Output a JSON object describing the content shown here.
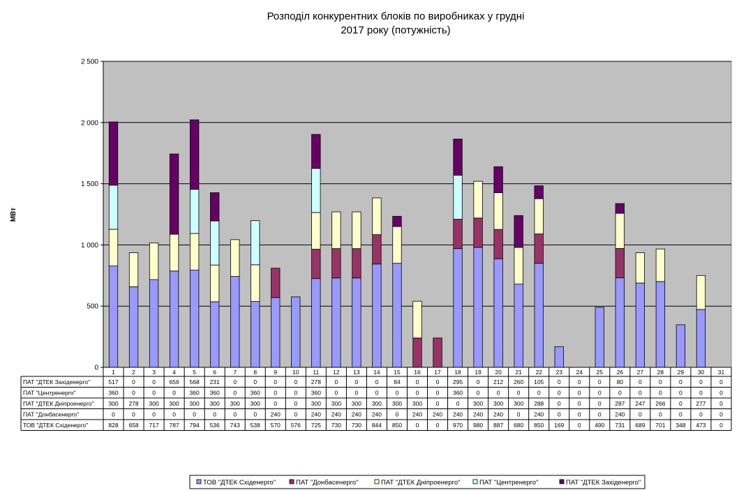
{
  "chart_data": {
    "type": "bar",
    "stacked": true,
    "title_line1": "Розподіл конкурентних  блоків по виробниках  у грудні",
    "title_line2": "2017 року  (потужність)",
    "ylabel": "МВт",
    "ylim": [
      0,
      2500
    ],
    "yticks": [
      "0",
      "500",
      "1 000",
      "1 500",
      "2 000",
      "2 500"
    ],
    "ytick_values": [
      0,
      500,
      1000,
      1500,
      2000,
      2500
    ],
    "grid": true,
    "legend_position": "bottom",
    "categories": [
      "1",
      "2",
      "3",
      "4",
      "5",
      "6",
      "7",
      "8",
      "9",
      "10",
      "11",
      "12",
      "13",
      "14",
      "15",
      "16",
      "17",
      "18",
      "19",
      "20",
      "21",
      "22",
      "23",
      "24",
      "25",
      "26",
      "27",
      "28",
      "29",
      "30",
      "31"
    ],
    "series": [
      {
        "name": "ТОВ \"ДТЕК Східенерго\"",
        "color": "#9999ff",
        "values": [
          828,
          658,
          717,
          787,
          794,
          536,
          743,
          538,
          570,
          576,
          725,
          730,
          730,
          844,
          850,
          0,
          0,
          970,
          980,
          887,
          680,
          850,
          169,
          0,
          490,
          731,
          689,
          701,
          348,
          473,
          0
        ]
      },
      {
        "name": "ПАТ \"Донбасенерго\"",
        "color": "#993366",
        "values": [
          0,
          0,
          0,
          0,
          0,
          0,
          0,
          0,
          240,
          0,
          240,
          240,
          240,
          240,
          0,
          240,
          240,
          240,
          240,
          240,
          0,
          240,
          0,
          0,
          0,
          240,
          0,
          0,
          0,
          0,
          0
        ]
      },
      {
        "name": "ПАТ \"ДТЕК Дніпроенерго\"",
        "color": "#ffffcc",
        "values": [
          300,
          278,
          300,
          300,
          300,
          300,
          300,
          300,
          0,
          0,
          300,
          300,
          300,
          300,
          300,
          300,
          0,
          0,
          300,
          300,
          300,
          288,
          0,
          0,
          0,
          287,
          247,
          266,
          0,
          277,
          0
        ]
      },
      {
        "name": "ПАТ \"Центренерго\"",
        "color": "#ccffff",
        "values": [
          360,
          0,
          0,
          0,
          360,
          360,
          0,
          360,
          0,
          0,
          360,
          0,
          0,
          0,
          0,
          0,
          0,
          360,
          0,
          0,
          0,
          0,
          0,
          0,
          0,
          0,
          0,
          0,
          0,
          0,
          0
        ]
      },
      {
        "name": "ПАТ \"ДТЕК Західенерго\"",
        "color": "#660066",
        "values": [
          517,
          0,
          0,
          656,
          568,
          231,
          0,
          0,
          0,
          0,
          278,
          0,
          0,
          0,
          84,
          0,
          0,
          295,
          0,
          212,
          260,
          105,
          0,
          0,
          0,
          80,
          0,
          0,
          0,
          0,
          0
        ]
      }
    ],
    "table_row_order": [
      4,
      3,
      2,
      1,
      0
    ],
    "legend_order": [
      0,
      1,
      2,
      3,
      4
    ]
  }
}
